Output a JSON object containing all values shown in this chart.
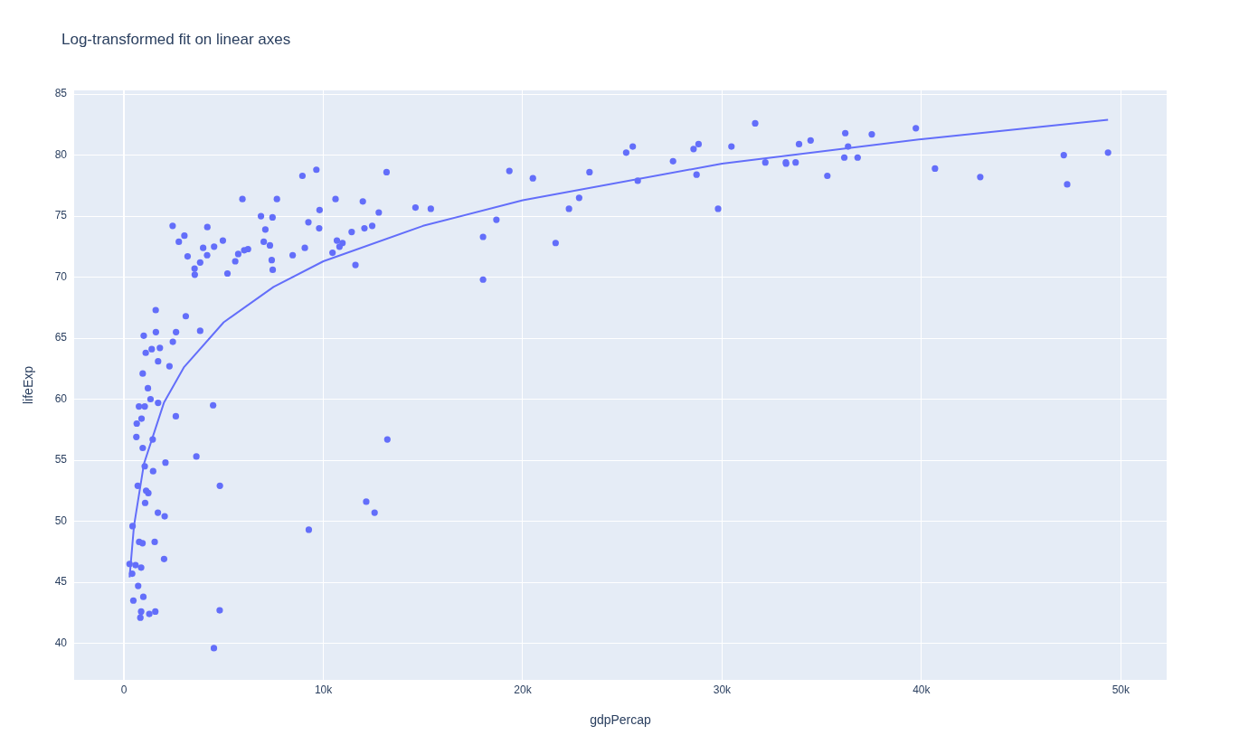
{
  "chart_data": {
    "type": "scatter",
    "title": "Log-transformed fit on linear axes",
    "xlabel": "gdpPercap",
    "ylabel": "lifeExp",
    "xlim": [
      -2500,
      52300
    ],
    "ylim": [
      37.0,
      85.3
    ],
    "xticks": [
      0,
      {
        "value": 10000,
        "label": "10k"
      },
      {
        "value": 20000,
        "label": "20k"
      },
      {
        "value": 30000,
        "label": "30k"
      },
      {
        "value": 40000,
        "label": "40k"
      },
      {
        "value": 50000,
        "label": "50k"
      }
    ],
    "yticks": [
      40,
      45,
      50,
      55,
      60,
      65,
      70,
      75,
      80,
      85
    ],
    "grid": true,
    "legend": false,
    "series": [
      {
        "marker": "circle",
        "color": "#636efa",
        "x": [
          970,
          5940,
          6220,
          4800,
          12780,
          34440,
          36130,
          29800,
          1390,
          33690,
          1440,
          3820,
          7450,
          12570,
          9070,
          10680,
          1220,
          430,
          1710,
          2040,
          36320,
          710,
          1700,
          13170,
          4960,
          7010,
          990,
          280,
          3630,
          9650,
          1540,
          14620,
          8950,
          22830,
          35280,
          2080,
          6030,
          6870,
          5580,
          5730,
          12150,
          640,
          690,
          33210,
          30470,
          13210,
          750,
          32170,
          1330,
          27540,
          5190,
          940,
          580,
          1200,
          3550,
          39720,
          18010,
          36180,
          2450,
          3540,
          11610,
          4470,
          40680,
          25520,
          28570,
          7320,
          31660,
          4520,
          1460,
          1590,
          23350,
          47310,
          10460,
          1570,
          410,
          12060,
          1040,
          760,
          12450,
          1040,
          1800,
          10960,
          11980,
          3100,
          9250,
          3820,
          820,
          940,
          4810,
          1090,
          36800,
          25190,
          2750,
          620,
          2010,
          49360,
          22320,
          2610,
          9810,
          4170,
          7410,
          3190,
          15390,
          20510,
          19330,
          7670,
          10810,
          860,
          1600,
          21650,
          1710,
          9790,
          860,
          47140,
          18680,
          25770,
          930,
          9270,
          28820,
          3970,
          2600,
          4510,
          33860,
          37510,
          4180,
          28720,
          1110,
          7460,
          880,
          18010,
          7090,
          8460,
          1060,
          33200,
          42950,
          10610,
          11420,
          2440,
          3030,
          2280,
          1270,
          470
        ],
        "values": [
          43.8,
          76.4,
          72.3,
          42.7,
          75.3,
          81.2,
          79.8,
          75.6,
          64.1,
          79.4,
          56.7,
          65.6,
          74.9,
          50.7,
          72.4,
          73.0,
          52.3,
          49.6,
          59.7,
          50.4,
          80.7,
          44.7,
          50.7,
          78.6,
          73.0,
          72.9,
          65.2,
          46.5,
          55.3,
          78.8,
          48.3,
          75.7,
          78.3,
          76.5,
          78.3,
          54.8,
          72.2,
          75.0,
          71.3,
          71.9,
          51.6,
          58.0,
          52.9,
          79.3,
          80.7,
          56.7,
          59.4,
          79.4,
          60.0,
          79.5,
          70.3,
          56.0,
          46.4,
          60.9,
          70.2,
          82.2,
          73.3,
          81.8,
          64.7,
          70.7,
          71.0,
          59.5,
          78.9,
          80.7,
          80.5,
          72.6,
          82.6,
          72.5,
          54.1,
          67.3,
          78.6,
          77.6,
          72.0,
          42.6,
          45.7,
          74.0,
          59.4,
          48.3,
          74.2,
          54.5,
          64.2,
          72.8,
          76.2,
          66.8,
          74.5,
          71.2,
          42.1,
          62.1,
          52.9,
          63.8,
          79.8,
          80.2,
          72.9,
          56.9,
          46.9,
          80.2,
          75.6,
          65.5,
          75.5,
          71.8,
          71.4,
          71.7,
          75.6,
          78.1,
          78.7,
          76.4,
          72.5,
          46.2,
          65.5,
          72.8,
          63.1,
          74.0,
          42.6,
          80.0,
          74.7,
          77.9,
          48.2,
          49.3,
          80.9,
          72.4,
          58.6,
          39.6,
          80.9,
          81.7,
          74.1,
          78.4,
          52.5,
          70.6,
          58.4,
          69.8,
          73.9,
          71.8,
          51.5,
          79.4,
          78.2,
          76.4,
          73.7,
          74.2,
          73.4,
          62.7,
          42.4,
          43.5
        ]
      },
      {
        "type": "line",
        "color": "#636efa",
        "x": [
          280,
          500,
          1000,
          2000,
          3000,
          5000,
          7500,
          10000,
          15000,
          20000,
          30000,
          40000,
          49360
        ],
        "values": [
          45.4,
          49.6,
          54.7,
          59.7,
          62.6,
          66.3,
          69.2,
          71.3,
          74.2,
          76.3,
          79.3,
          81.3,
          82.9
        ]
      }
    ]
  }
}
